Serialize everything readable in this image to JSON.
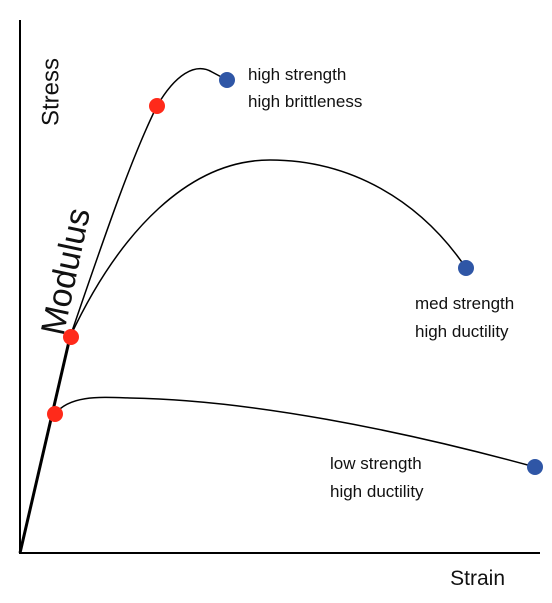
{
  "axes": {
    "y_label": "Stress",
    "x_label": "Strain"
  },
  "modulus_label": "Modulus",
  "curves": [
    {
      "label": [
        "high strength",
        "high brittleness"
      ]
    },
    {
      "label": [
        "med strength",
        "high ductility"
      ]
    },
    {
      "label": [
        "low strength",
        "high ductility"
      ]
    }
  ]
}
